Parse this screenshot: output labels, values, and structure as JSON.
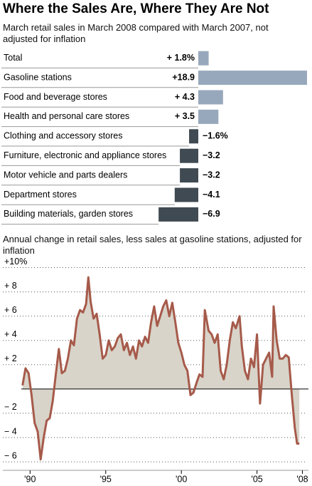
{
  "chart_data": [
    {
      "type": "hbar",
      "title": "Where the Sales Are, Where They Are Not",
      "subtitle": "March retail sales in March 2008 compared with March 2007, not adjusted for inflation",
      "categories": [
        "Total",
        "Gasoline stations",
        "Food and beverage stores",
        "Health and personal care stores",
        "Clothing and accessory stores",
        "Furniture, electronic and appliance stores",
        "Motor vehicle and parts dealers",
        "Department stores",
        "Building materials, garden stores"
      ],
      "values": [
        1.8,
        18.9,
        4.3,
        3.5,
        -1.6,
        -3.2,
        -3.2,
        -4.1,
        -6.9
      ],
      "value_labels": [
        "+ 1.8%",
        "+18.9",
        "+ 4.3",
        "+ 3.5",
        "−1.6%",
        "−3.2",
        "−3.2",
        "−4.1",
        "−6.9"
      ],
      "positive_color": "#98a8bc",
      "negative_color": "#3f4a52"
    },
    {
      "type": "area",
      "title": "Annual change in retail sales, less sales at gasoline stations, adjusted for inflation",
      "color": "#a65a4a",
      "fill_color": "#d8d4ca",
      "x": [
        1989.5,
        1989.7,
        1989.9,
        1990.1,
        1990.3,
        1990.5,
        1990.7,
        1990.9,
        1991.1,
        1991.3,
        1991.5,
        1991.7,
        1991.9,
        1992.1,
        1992.3,
        1992.5,
        1992.7,
        1992.9,
        1993.1,
        1993.3,
        1993.5,
        1993.7,
        1993.85,
        1994.0,
        1994.2,
        1994.4,
        1994.6,
        1994.8,
        1995.0,
        1995.2,
        1995.4,
        1995.6,
        1995.8,
        1996.0,
        1996.2,
        1996.4,
        1996.6,
        1996.8,
        1997.0,
        1997.2,
        1997.4,
        1997.6,
        1997.8,
        1998.0,
        1998.2,
        1998.4,
        1998.6,
        1998.8,
        1999.0,
        1999.2,
        1999.4,
        1999.6,
        1999.8,
        2000.0,
        2000.2,
        2000.4,
        2000.6,
        2000.8,
        2001.0,
        2001.2,
        2001.4,
        2001.55,
        2001.8,
        2002.0,
        2002.2,
        2002.4,
        2002.6,
        2002.8,
        2003.0,
        2003.2,
        2003.4,
        2003.6,
        2003.85,
        2004.0,
        2004.2,
        2004.4,
        2004.6,
        2004.8,
        2005.0,
        2005.1,
        2005.2,
        2005.4,
        2005.6,
        2005.8,
        2006.0,
        2006.1,
        2006.3,
        2006.5,
        2006.7,
        2006.9,
        2007.1,
        2007.3,
        2007.5,
        2007.65,
        2007.8
      ],
      "values": [
        0.3,
        1.7,
        1.3,
        -0.5,
        -2.8,
        -3.5,
        -5.8,
        -4.0,
        -2.6,
        -2.4,
        -1.0,
        1.2,
        3.3,
        1.3,
        1.5,
        2.5,
        4.0,
        3.6,
        5.8,
        6.5,
        6.3,
        7.0,
        9.2,
        7.2,
        5.8,
        6.2,
        4.5,
        2.5,
        2.8,
        4.0,
        3.2,
        3.5,
        4.2,
        4.5,
        3.2,
        3.8,
        2.8,
        3.5,
        2.5,
        4.0,
        3.5,
        4.3,
        3.8,
        5.5,
        6.8,
        5.2,
        6.0,
        6.8,
        7.3,
        6.0,
        7.1,
        5.5,
        3.8,
        3.0,
        2.0,
        1.5,
        -0.5,
        -0.3,
        0.5,
        1.2,
        1.0,
        6.5,
        4.8,
        4.5,
        3.8,
        4.5,
        1.5,
        0.8,
        2.0,
        4.0,
        5.5,
        5.0,
        6.0,
        3.5,
        1.5,
        0.8,
        2.5,
        1.8,
        4.5,
        1.5,
        -1.2,
        2.0,
        2.5,
        3.0,
        1.0,
        6.8,
        4.0,
        2.5,
        2.5,
        2.8,
        2.6,
        -0.5,
        -3.2,
        -4.5,
        -4.5
      ],
      "xlim": [
        1988.2,
        2008.4
      ],
      "xticks": [
        {
          "value": 1990,
          "label": "'90"
        },
        {
          "value": 1995,
          "label": "'95"
        },
        {
          "value": 2000,
          "label": "'00"
        },
        {
          "value": 2005,
          "label": "'05"
        },
        {
          "value": 2008,
          "label": "'08"
        }
      ],
      "ylim": [
        -6.7,
        10.5
      ],
      "yticks": [
        {
          "value": 10,
          "label": "+10%"
        },
        {
          "value": 8,
          "label": "+ 8"
        },
        {
          "value": 6,
          "label": "+ 6"
        },
        {
          "value": 4,
          "label": "+ 4"
        },
        {
          "value": 2,
          "label": "+ 2"
        },
        {
          "value": -2,
          "label": "− 2"
        },
        {
          "value": -4,
          "label": "− 4"
        },
        {
          "value": -6,
          "label": "− 6"
        }
      ],
      "grid": true
    }
  ]
}
